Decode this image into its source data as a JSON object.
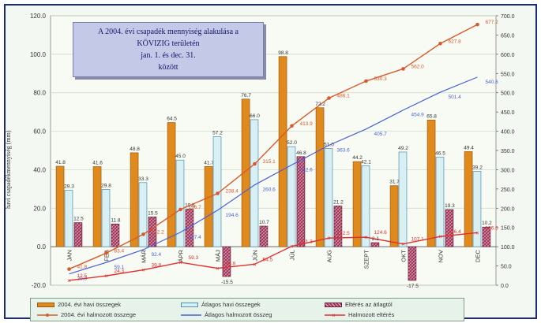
{
  "colors": {
    "bar1": "#e08a1e",
    "bar2": "#d8f0f4",
    "bar2_stroke": "#4f8fb0",
    "bar3": "#a23a5e",
    "line1": "#d85a2c",
    "line2": "#4b5fd6",
    "line3": "#e03030",
    "frame": "#1b2a7a",
    "grid": "#c8d8c0"
  },
  "chart_data": {
    "type": "bar",
    "title_lines": [
      "A 2004. évi csapadék mennyiség alakulása a",
      "KÖVIZIG területén",
      "jan. 1. és dec. 31.",
      "között"
    ],
    "ylabel": "havi csapadékmennyiség (mm)",
    "ylim": [
      -20,
      120
    ],
    "y2lim": [
      0,
      700
    ],
    "yticks": [
      "120.0",
      "100.0",
      "80.0",
      "60.0",
      "40.0",
      "20.0",
      "0.0",
      "-20.0"
    ],
    "y2ticks": [
      "700.0",
      "650.0",
      "600.0",
      "550.0",
      "500.0",
      "450.0",
      "400.0",
      "350.0",
      "300.0",
      "250.0",
      "200.0",
      "150.0",
      "100.0",
      "50.0",
      "0.0"
    ],
    "categories": [
      "JAN",
      "FEB",
      "MÁR",
      "ÁPR",
      "MÁJ",
      "JÚN",
      "JÚL",
      "AUG",
      "SZEPT",
      "OKT",
      "NOV",
      "DEC"
    ],
    "series": [
      {
        "name": "2004. évi havi összegek",
        "kind": "bar",
        "values": [
          41.8,
          41.6,
          48.8,
          64.5,
          41.7,
          76.7,
          98.8,
          72.2,
          44.2,
          31.7,
          65.8,
          49.4
        ],
        "labels": [
          "41.8",
          "41.6",
          "48.8",
          "64.5",
          "41.7",
          "76.7",
          "98.8",
          "72.2",
          "44.2",
          "31.7",
          "65.8",
          "49.4"
        ]
      },
      {
        "name": "Átlagos havi összegek",
        "kind": "bar",
        "values": [
          29.3,
          29.8,
          33.3,
          45.0,
          57.2,
          66.0,
          52.0,
          51.0,
          42.1,
          49.2,
          46.5,
          39.2
        ],
        "labels": [
          "29.3",
          "29.8",
          "33.3",
          "45.0",
          "57.2",
          "66.0",
          "52.0",
          "51.0",
          "42.1",
          "49.2",
          "46.5",
          "39.2"
        ]
      },
      {
        "name": "Eltérés az átlagtól",
        "kind": "bar",
        "values": [
          12.5,
          11.8,
          15.5,
          19.5,
          -15.5,
          10.7,
          46.8,
          21.2,
          2.1,
          -17.5,
          19.3,
          10.2
        ],
        "labels": [
          "12.5",
          "11.8",
          "15.5",
          "19.5",
          "-15.5",
          "10.7",
          "46.8",
          "21.2",
          "2.1",
          "-17.5",
          "19.3",
          "10.2"
        ]
      },
      {
        "name": "2004. évi halmozott összege",
        "kind": "line",
        "values": [
          41.8,
          83.4,
          132.2,
          196.7,
          238.4,
          315.1,
          413.9,
          486.1,
          530.3,
          562.0,
          627.8,
          677.2
        ],
        "labels": [
          "41.8",
          "83.4",
          "132.2",
          "196.7",
          "238.4",
          "315.1",
          "413.9",
          "486.1",
          "530.3",
          "562.0",
          "627.8",
          "677.2"
        ]
      },
      {
        "name": "Átlagos halmozott összeg",
        "kind": "line",
        "values": [
          29.3,
          59.1,
          92.4,
          137.4,
          194.6,
          260.6,
          312.6,
          363.6,
          405.7,
          454.9,
          501.4,
          540.6
        ],
        "labels": [
          "29.3",
          "59.1",
          "92.4",
          "137.4",
          "194.6",
          "260.6",
          "312.6",
          "363.6",
          "405.7",
          "454.9",
          "501.4",
          "540.6"
        ]
      },
      {
        "name": "Halmozott eltérés",
        "kind": "line",
        "values": [
          12.5,
          24.3,
          39.8,
          59.3,
          43.8,
          54.5,
          101.3,
          122.5,
          124.6,
          107.1,
          126.4,
          136.6
        ],
        "labels": [
          "12.5",
          "24.3",
          "39.8",
          "59.3",
          "43.8",
          "54.5",
          "101.3",
          "122.5",
          "124.6",
          "107.1",
          "126.4",
          "136.6"
        ]
      }
    ],
    "grid": true,
    "legend_position": "bottom"
  }
}
